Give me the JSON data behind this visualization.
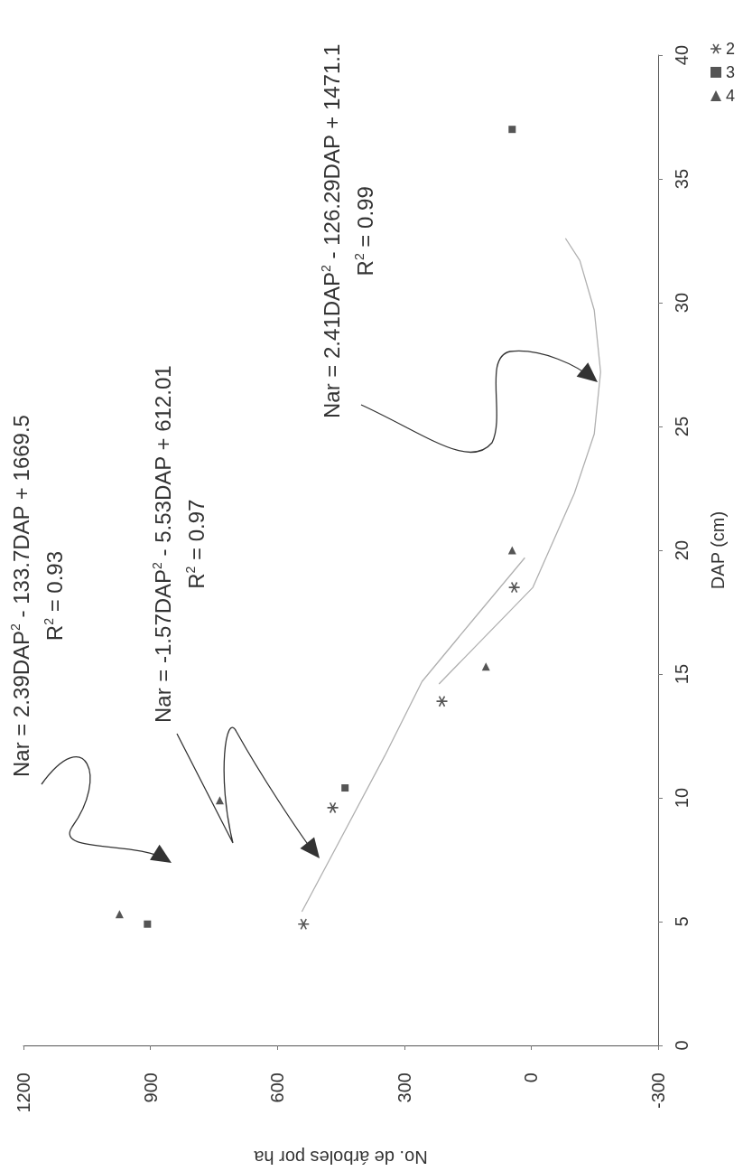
{
  "chart_data": {
    "type": "scatter",
    "xlabel": "No. de árboles por ha",
    "ylabel": "DAP (cm)",
    "xlim": [
      1200,
      -300
    ],
    "xticks": [
      1200,
      900,
      600,
      300,
      0,
      -300
    ],
    "ylim": [
      0,
      40
    ],
    "yticks": [
      0,
      5,
      10,
      15,
      20,
      25,
      30,
      35,
      40
    ],
    "legend": "top right",
    "annotations": [
      "Nar = 2.39DAP$^{2}$ - 133.7DAP + 1669.5\nR$^{2}$ = 0.93",
      "Nar = -1.57DAP$^{2}$ - 5.53DAP + 612.01\nR$^{2}$ = 0.97",
      "Nar = 2.41DAP$^{2}$ - 126.29DAP + 1471.1\nR$^{2}$ = 0.99"
    ],
    "series": [
      {
        "name": "2",
        "color": "#2b2b2b",
        "marker": "cross",
        "x": [
          538,
          469,
          211,
          40
        ],
        "values": [
          4.9,
          9.6,
          13.9,
          18.5
        ]
      },
      {
        "name": "3",
        "color": "#2b2b2b",
        "marker": "square",
        "x": [
          907,
          440,
          45
        ],
        "values": [
          4.9,
          10.4,
          37.0
        ]
      },
      {
        "name": "4",
        "color": "#2b2b2b",
        "marker": "triangle",
        "x": [
          973,
          736,
          107,
          45
        ],
        "values": [
          5.3,
          9.9,
          15.3,
          20.0
        ]
      },
      {
        "type": "line",
        "color": "#b0b0b0",
        "marker": "none",
        "x": [
          542,
          461,
          346,
          258,
          137,
          15
        ],
        "values": [
          5.4,
          8,
          11.7,
          14.7,
          17.2,
          19.7
        ]
      },
      {
        "type": "line",
        "color": "#b0b0b0",
        "marker": "none",
        "x": [
          218,
          -4,
          -102,
          -149,
          -164,
          -149,
          -115,
          -81
        ],
        "values": [
          14.6,
          18.5,
          22.3,
          24.7,
          27.2,
          29.7,
          31.7,
          32.6
        ]
      }
    ]
  }
}
